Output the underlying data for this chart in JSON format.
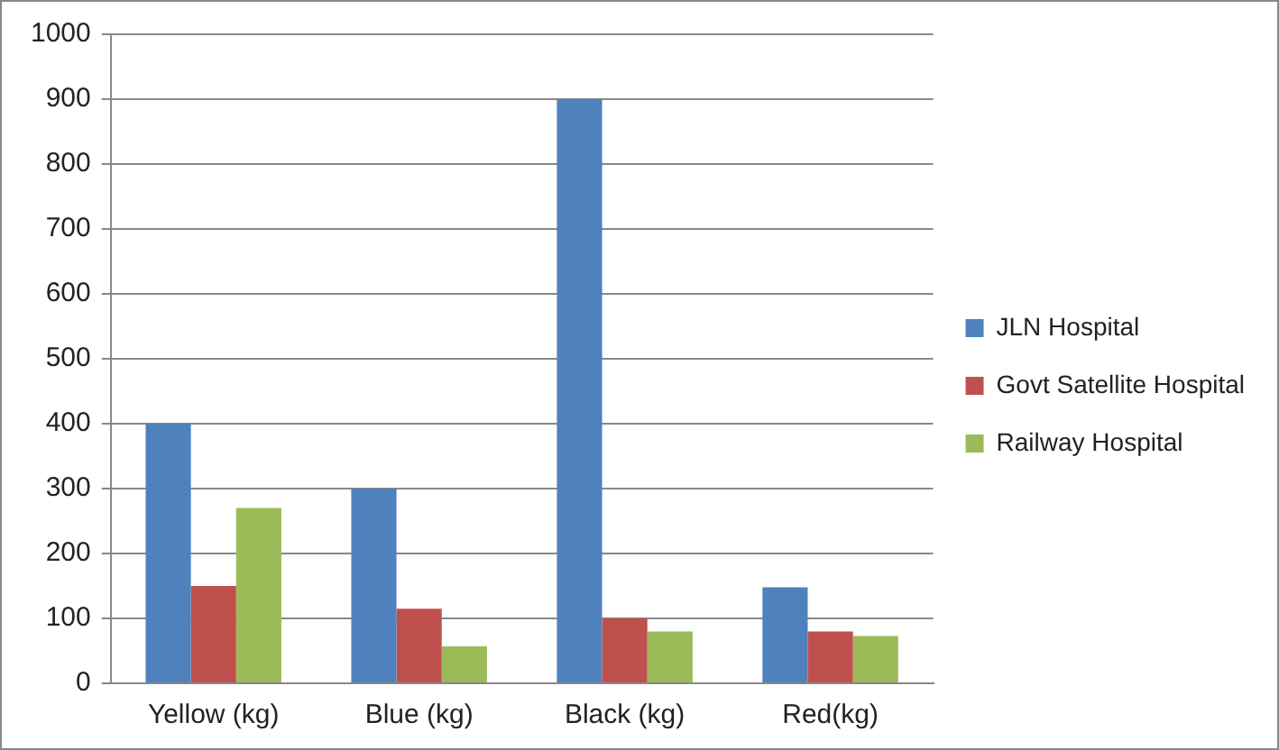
{
  "chart_data": {
    "type": "bar",
    "categories": [
      "Yellow (kg)",
      "Blue (kg)",
      "Black (kg)",
      "Red(kg)"
    ],
    "series": [
      {
        "name": "JLN Hospital",
        "color": "#4f81bd",
        "values": [
          400,
          300,
          900,
          148
        ]
      },
      {
        "name": "Govt Satellite Hospital",
        "color": "#c0504d",
        "values": [
          150,
          115,
          100,
          80
        ]
      },
      {
        "name": "Railway Hospital",
        "color": "#9bbb59",
        "values": [
          270,
          57,
          80,
          73
        ]
      }
    ],
    "ylim": [
      0,
      1000
    ],
    "yticks": [
      0,
      100,
      200,
      300,
      400,
      500,
      600,
      700,
      800,
      900,
      1000
    ],
    "grid": "y",
    "legend": "right"
  }
}
